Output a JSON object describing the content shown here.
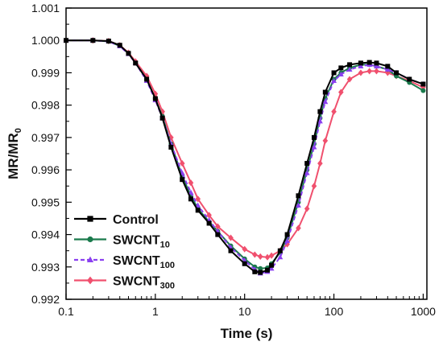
{
  "chart_data": {
    "type": "line",
    "title": "",
    "xlabel": "Time (s)",
    "ylabel": "MR/MR",
    "ylabel_subscript": "0",
    "x_scale": "log",
    "xlim": [
      0.1,
      1100
    ],
    "ylim": [
      0.992,
      1.001
    ],
    "x_ticks": [
      0.1,
      1,
      10,
      100,
      1000
    ],
    "x_tick_labels": [
      "0.1",
      "1",
      "10",
      "100",
      "1000"
    ],
    "y_ticks": [
      0.992,
      0.993,
      0.994,
      0.995,
      0.996,
      0.997,
      0.998,
      0.999,
      1.0,
      1.001
    ],
    "y_tick_labels": [
      "0.992",
      "0.993",
      "0.994",
      "0.995",
      "0.996",
      "0.997",
      "0.998",
      "0.999",
      "1.000",
      "1.001"
    ],
    "grid": false,
    "legend_position": "bottom-left",
    "series": [
      {
        "name": "Control",
        "name_main": "Control",
        "name_sub": "",
        "color": "#000000",
        "marker": "square",
        "dashed": false,
        "x": [
          0.1,
          0.2,
          0.3,
          0.4,
          0.5,
          0.6,
          0.8,
          1,
          1.2,
          1.5,
          2,
          2.5,
          3,
          4,
          5,
          7,
          10,
          13,
          15,
          18,
          20,
          25,
          30,
          40,
          50,
          60,
          70,
          80,
          100,
          120,
          150,
          200,
          250,
          300,
          400,
          500,
          700,
          1000
        ],
        "y": [
          1.0,
          1.0,
          0.99998,
          0.99985,
          0.9996,
          0.9993,
          0.9988,
          0.9982,
          0.9976,
          0.9967,
          0.9957,
          0.9951,
          0.99475,
          0.99435,
          0.994,
          0.9935,
          0.9931,
          0.99285,
          0.99283,
          0.9929,
          0.99305,
          0.9935,
          0.994,
          0.9952,
          0.9962,
          0.997,
          0.9978,
          0.9984,
          0.999,
          0.99915,
          0.99925,
          0.9993,
          0.99932,
          0.9993,
          0.9992,
          0.999,
          0.9988,
          0.99865
        ]
      },
      {
        "name": "SWCNT10",
        "name_main": "SWCNT",
        "name_sub": "10",
        "color": "#1a7a4c",
        "marker": "circle",
        "dashed": false,
        "x": [
          0.1,
          0.2,
          0.3,
          0.4,
          0.5,
          0.6,
          0.8,
          1,
          1.2,
          1.5,
          2,
          2.5,
          3,
          4,
          5,
          7,
          10,
          13,
          15,
          18,
          20,
          25,
          30,
          40,
          50,
          60,
          70,
          80,
          100,
          120,
          150,
          200,
          250,
          300,
          400,
          500,
          700,
          1000
        ],
        "y": [
          1.0,
          1.0,
          0.99997,
          0.99983,
          0.9996,
          0.9993,
          0.9988,
          0.9982,
          0.99765,
          0.9968,
          0.9958,
          0.9952,
          0.9948,
          0.9944,
          0.9941,
          0.99365,
          0.99325,
          0.993,
          0.99295,
          0.99297,
          0.9931,
          0.99345,
          0.9939,
          0.995,
          0.996,
          0.9968,
          0.9976,
          0.9982,
          0.9988,
          0.999,
          0.99915,
          0.99925,
          0.99925,
          0.9992,
          0.9991,
          0.9989,
          0.9987,
          0.99845
        ]
      },
      {
        "name": "SWCNT100",
        "name_main": "SWCNT",
        "name_sub": "100",
        "color": "#8a3ff0",
        "marker": "triangle",
        "dashed": true,
        "x": [
          0.1,
          0.2,
          0.3,
          0.4,
          0.5,
          0.6,
          0.8,
          1,
          1.2,
          1.5,
          2,
          2.5,
          3,
          4,
          5,
          7,
          10,
          13,
          15,
          18,
          20,
          25,
          30,
          40,
          50,
          60,
          70,
          80,
          100,
          120,
          150,
          200,
          250,
          300,
          400,
          500,
          700,
          1000
        ],
        "y": [
          1.0,
          1.0,
          0.99997,
          0.99982,
          0.99958,
          0.9993,
          0.99875,
          0.99815,
          0.9976,
          0.9968,
          0.9959,
          0.9953,
          0.9949,
          0.99445,
          0.9941,
          0.9936,
          0.9932,
          0.99292,
          0.9928,
          0.99285,
          0.99295,
          0.9933,
          0.9938,
          0.9949,
          0.9959,
          0.9967,
          0.9975,
          0.9981,
          0.99875,
          0.99895,
          0.9991,
          0.9992,
          0.99925,
          0.9992,
          0.9991,
          0.999,
          0.9988,
          0.99865
        ]
      },
      {
        "name": "SWCNT300",
        "name_main": "SWCNT",
        "name_sub": "300",
        "color": "#f0506e",
        "marker": "diamond",
        "dashed": false,
        "x": [
          0.1,
          0.2,
          0.3,
          0.4,
          0.5,
          0.6,
          0.8,
          1,
          1.2,
          1.5,
          2,
          2.5,
          3,
          4,
          5,
          7,
          10,
          13,
          15,
          18,
          20,
          25,
          30,
          40,
          50,
          60,
          70,
          80,
          100,
          120,
          150,
          200,
          250,
          300,
          400,
          500,
          700,
          1000
        ],
        "y": [
          1.0,
          1.0,
          0.99998,
          0.99985,
          0.99962,
          0.99935,
          0.9989,
          0.99835,
          0.9978,
          0.997,
          0.9962,
          0.9956,
          0.9951,
          0.9946,
          0.99425,
          0.9939,
          0.99355,
          0.99338,
          0.99332,
          0.9933,
          0.99335,
          0.9935,
          0.9937,
          0.9942,
          0.9948,
          0.9955,
          0.9962,
          0.9969,
          0.9978,
          0.9984,
          0.9988,
          0.999,
          0.99905,
          0.99905,
          0.999,
          0.9989,
          0.99875,
          0.99855
        ]
      }
    ]
  }
}
